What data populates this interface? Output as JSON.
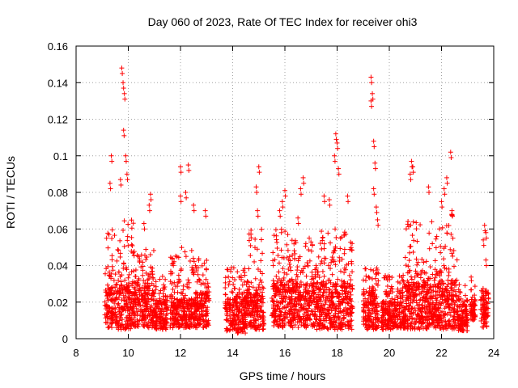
{
  "chart_data": {
    "type": "scatter",
    "title": "Day 060 of 2023, Rate Of TEC Index for receiver ohi3",
    "xlabel": "GPS time / hours",
    "ylabel": "ROTI / TECUs",
    "xlim": [
      8,
      24
    ],
    "ylim": [
      0,
      0.16
    ],
    "xticks": [
      8,
      10,
      12,
      14,
      16,
      18,
      20,
      22,
      24
    ],
    "yticks": [
      0,
      0.02,
      0.04,
      0.06,
      0.08,
      0.1,
      0.12,
      0.14,
      0.16
    ],
    "xtick_labels": [
      "8",
      "10",
      "12",
      "14",
      "16",
      "18",
      "20",
      "22",
      "24"
    ],
    "ytick_labels": [
      "0",
      "0.02",
      "0.04",
      "0.06",
      "0.08",
      "0.1",
      "0.12",
      "0.14",
      "0.16"
    ],
    "grid": true,
    "marker": "+",
    "color": "#ff0000",
    "clusters": [
      {
        "x": [
          9.1,
          9.5
        ],
        "ybase": [
          0.006,
          0.028
        ],
        "ypeak": 0.06,
        "spikes": [
          [
            9.3,
            0.085
          ],
          [
            9.35,
            0.1
          ]
        ]
      },
      {
        "x": [
          9.5,
          10.2
        ],
        "ybase": [
          0.005,
          0.03
        ],
        "ypeak": 0.065,
        "spikes": [
          [
            9.75,
            0.148
          ],
          [
            9.8,
            0.14
          ],
          [
            9.85,
            0.134
          ],
          [
            9.82,
            0.114
          ],
          [
            9.9,
            0.1
          ],
          [
            9.95,
            0.09
          ],
          [
            9.7,
            0.087
          ]
        ]
      },
      {
        "x": [
          10.2,
          11.0
        ],
        "ybase": [
          0.006,
          0.03
        ],
        "ypeak": 0.05,
        "spikes": [
          [
            10.85,
            0.079
          ],
          [
            10.8,
            0.073
          ],
          [
            10.6,
            0.063
          ]
        ]
      },
      {
        "x": [
          11.0,
          11.5
        ],
        "ybase": [
          0.005,
          0.02
        ],
        "ypeak": 0.035,
        "spikes": []
      },
      {
        "x": [
          11.6,
          12.6
        ],
        "ybase": [
          0.006,
          0.022
        ],
        "ypeak": 0.05,
        "spikes": [
          [
            12.0,
            0.094
          ],
          [
            12.3,
            0.095
          ],
          [
            12.0,
            0.078
          ],
          [
            12.5,
            0.073
          ],
          [
            12.2,
            0.08
          ]
        ]
      },
      {
        "x": [
          12.6,
          13.1
        ],
        "ybase": [
          0.006,
          0.025
        ],
        "ypeak": 0.045,
        "spikes": [
          [
            12.95,
            0.07
          ]
        ]
      },
      {
        "x": [
          13.7,
          14.5
        ],
        "ybase": [
          0.003,
          0.022
        ],
        "ypeak": 0.04,
        "spikes": []
      },
      {
        "x": [
          14.5,
          15.2
        ],
        "ybase": [
          0.005,
          0.025
        ],
        "ypeak": 0.06,
        "spikes": [
          [
            15.0,
            0.094
          ],
          [
            14.9,
            0.083
          ],
          [
            14.95,
            0.07
          ]
        ]
      },
      {
        "x": [
          15.5,
          16.2
        ],
        "ybase": [
          0.006,
          0.03
        ],
        "ypeak": 0.06,
        "spikes": [
          [
            16.0,
            0.081
          ],
          [
            15.9,
            0.075
          ],
          [
            15.8,
            0.07
          ]
        ]
      },
      {
        "x": [
          16.2,
          17.2
        ],
        "ybase": [
          0.006,
          0.03
        ],
        "ypeak": 0.055,
        "spikes": [
          [
            16.7,
            0.088
          ],
          [
            16.6,
            0.082
          ],
          [
            16.5,
            0.066
          ]
        ]
      },
      {
        "x": [
          17.2,
          17.9
        ],
        "ybase": [
          0.005,
          0.03
        ],
        "ypeak": 0.06,
        "spikes": [
          [
            17.5,
            0.078
          ],
          [
            17.7,
            0.076
          ]
        ]
      },
      {
        "x": [
          17.9,
          18.6
        ],
        "ybase": [
          0.005,
          0.03
        ],
        "ypeak": 0.06,
        "spikes": [
          [
            17.95,
            0.112
          ],
          [
            18.0,
            0.107
          ],
          [
            17.9,
            0.1
          ],
          [
            18.05,
            0.093
          ],
          [
            18.4,
            0.078
          ]
        ]
      },
      {
        "x": [
          19.0,
          19.6
        ],
        "ybase": [
          0.005,
          0.025
        ],
        "ypeak": 0.04,
        "spikes": [
          [
            19.3,
            0.143
          ],
          [
            19.35,
            0.134
          ],
          [
            19.3,
            0.13
          ],
          [
            19.4,
            0.108
          ],
          [
            19.45,
            0.096
          ],
          [
            19.4,
            0.082
          ],
          [
            19.5,
            0.072
          ],
          [
            19.55,
            0.065
          ]
        ]
      },
      {
        "x": [
          19.7,
          20.6
        ],
        "ybase": [
          0.005,
          0.02
        ],
        "ypeak": 0.035,
        "spikes": []
      },
      {
        "x": [
          20.6,
          21.5
        ],
        "ybase": [
          0.005,
          0.03
        ],
        "ypeak": 0.065,
        "spikes": [
          [
            20.85,
            0.097
          ],
          [
            20.9,
            0.094
          ],
          [
            20.8,
            0.09
          ],
          [
            21.5,
            0.083
          ]
        ]
      },
      {
        "x": [
          21.5,
          22.6
        ],
        "ybase": [
          0.005,
          0.03
        ],
        "ypeak": 0.07,
        "spikes": [
          [
            22.1,
            0.082
          ],
          [
            22.2,
            0.088
          ],
          [
            22.35,
            0.102
          ],
          [
            22.0,
            0.075
          ],
          [
            22.4,
            0.07
          ]
        ]
      },
      {
        "x": [
          22.6,
          23.0
        ],
        "ybase": [
          0.004,
          0.018
        ],
        "ypeak": 0.03,
        "spikes": []
      },
      {
        "x": [
          23.1,
          23.3
        ],
        "ybase": [
          0.01,
          0.02
        ],
        "ypeak": 0.036,
        "spikes": []
      },
      {
        "x": [
          23.5,
          23.8
        ],
        "ybase": [
          0.006,
          0.022
        ],
        "ypeak": 0.028,
        "spikes": [
          [
            23.65,
            0.062
          ],
          [
            23.7,
            0.058
          ],
          [
            23.6,
            0.054
          ],
          [
            23.7,
            0.043
          ]
        ]
      }
    ]
  }
}
